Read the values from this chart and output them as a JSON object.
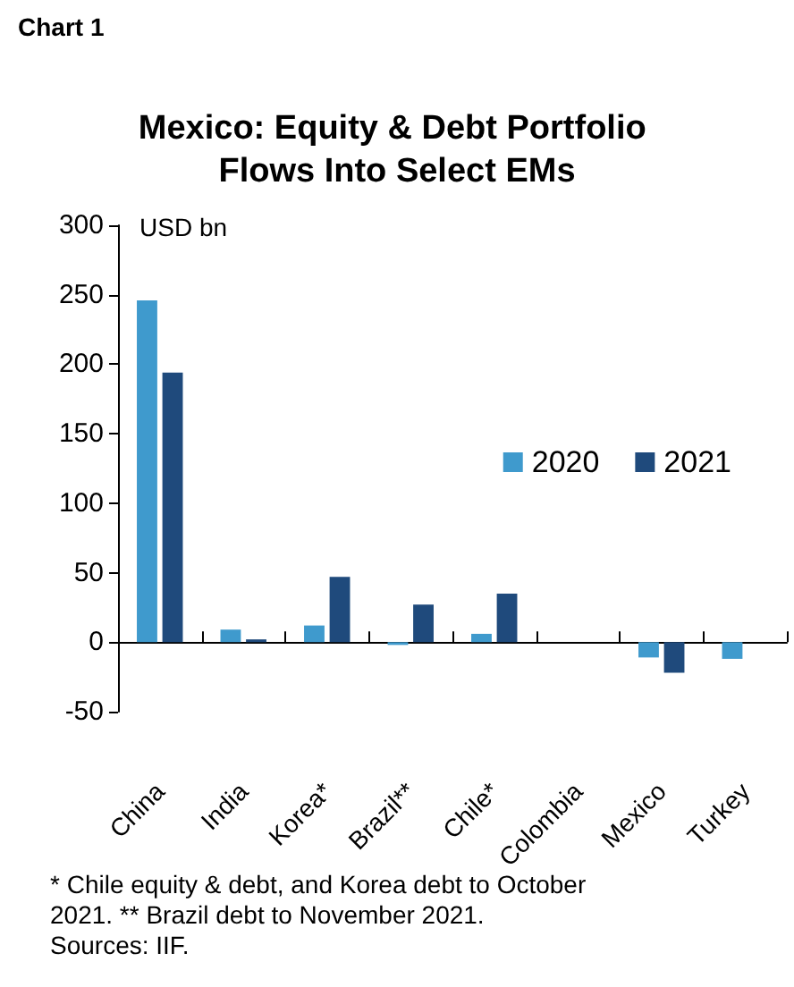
{
  "chart_data": {
    "type": "bar",
    "title": "Mexico: Equity & Debt Portfolio Flows Into Select EMs",
    "ylabel": "USD bn",
    "annotations": [
      "Chart 1",
      "* Chile equity & debt, and Korea debt to October 2021. ** Brazil debt to November 2021.",
      "Sources: IIF."
    ],
    "categories": [
      "China",
      "India",
      "Korea*",
      "Brazil**",
      "Chile*",
      "Colombia",
      "Mexico",
      "Turkey"
    ],
    "series": [
      {
        "name": "2020",
        "color": "#3f9acd",
        "values": [
          246,
          9,
          12,
          -2,
          6,
          null,
          -11,
          -12
        ]
      },
      {
        "name": "2021",
        "color": "#1f4a7c",
        "values": [
          194,
          2,
          47,
          27,
          35,
          null,
          -22,
          null
        ]
      }
    ],
    "ylim": [
      -50,
      300
    ],
    "yticks": [
      -50,
      0,
      50,
      100,
      150,
      200,
      250,
      300
    ],
    "legend": "right"
  }
}
